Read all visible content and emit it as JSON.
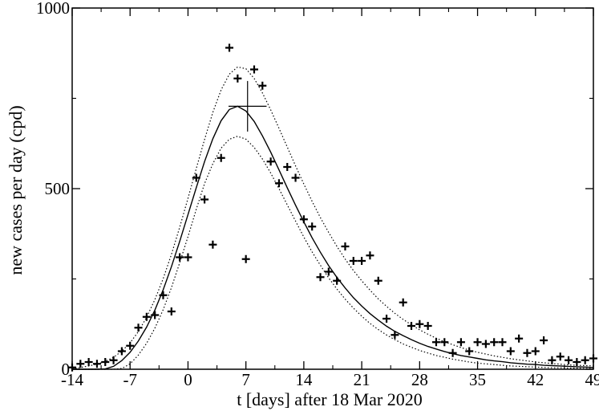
{
  "chart_data": {
    "type": "scatter",
    "title": "",
    "xlabel": "t [days] after 18 Mar 2020",
    "ylabel": "new cases per day  (cpd)",
    "xlim": [
      -14,
      49
    ],
    "ylim": [
      0,
      1000
    ],
    "xticks": [
      -14,
      -7,
      0,
      7,
      14,
      21,
      28,
      35,
      42,
      49
    ],
    "yticks": [
      0,
      500,
      1000
    ],
    "minor_xticks": [
      -10.5,
      -3.5,
      3.5,
      10.5,
      17.5,
      24.5,
      31.5,
      38.5,
      45.5
    ],
    "minor_yticks": [
      250,
      750
    ],
    "grid": false,
    "legend": "none",
    "series": [
      {
        "style": "plus-markers",
        "x": [
          -14,
          -13,
          -12,
          -11,
          -10,
          -9,
          -8,
          -7,
          -6,
          -5,
          -4,
          -3,
          -2,
          -1,
          0,
          1,
          2,
          3,
          4,
          5,
          6,
          7,
          8,
          9,
          10,
          11,
          12,
          13,
          14,
          15,
          16,
          17,
          18,
          19,
          20,
          21,
          22,
          23,
          24,
          25,
          26,
          27,
          28,
          29,
          30,
          31,
          32,
          33,
          34,
          35,
          36,
          37,
          38,
          39,
          40,
          41,
          42,
          43,
          44,
          45,
          46,
          47,
          48,
          49
        ],
        "y": [
          5,
          15,
          20,
          15,
          20,
          25,
          50,
          65,
          115,
          145,
          150,
          205,
          160,
          310,
          310,
          530,
          470,
          345,
          585,
          890,
          805,
          305,
          830,
          785,
          575,
          515,
          560,
          530,
          415,
          395,
          255,
          270,
          245,
          340,
          300,
          300,
          315,
          245,
          140,
          95,
          185,
          120,
          125,
          120,
          75,
          75,
          45,
          75,
          50,
          75,
          70,
          75,
          75,
          50,
          85,
          45,
          50,
          80,
          25,
          35,
          25,
          20,
          25,
          30
        ]
      },
      {
        "style": "solid-line",
        "x": [
          -14,
          -13,
          -12,
          -11,
          -10,
          -9,
          -8,
          -7,
          -6,
          -5,
          -4,
          -3,
          -2,
          -1,
          0,
          1,
          2,
          3,
          4,
          5,
          6,
          7,
          8,
          9,
          10,
          11,
          12,
          13,
          14,
          15,
          16,
          17,
          18,
          19,
          20,
          21,
          22,
          23,
          24,
          25,
          26,
          27,
          28,
          29,
          30,
          31,
          32,
          33,
          34,
          35,
          36,
          37,
          38,
          39,
          40,
          41,
          42,
          43,
          44,
          45,
          46,
          47,
          48,
          49
        ],
        "y": [
          0,
          0,
          0,
          0,
          1,
          8,
          24,
          47,
          78,
          117,
          164,
          220,
          284,
          354,
          428,
          503,
          575,
          638,
          688,
          719,
          728,
          715,
          686,
          646,
          601,
          552,
          502,
          454,
          408,
          364,
          324,
          287,
          254,
          225,
          198,
          175,
          154,
          136,
          119,
          105,
          93,
          82,
          72,
          63,
          56,
          49,
          43,
          38,
          34,
          30,
          26,
          23,
          21,
          18,
          16,
          14,
          13,
          11,
          10,
          9,
          8,
          7,
          6,
          5
        ]
      },
      {
        "style": "dotted-line",
        "x": [
          -14,
          -13,
          -12,
          -11,
          -10,
          -9,
          -8,
          -7,
          -6,
          -5,
          -4,
          -3,
          -2,
          -1,
          0,
          1,
          2,
          3,
          4,
          5,
          6,
          7,
          8,
          9,
          10,
          11,
          12,
          13,
          14,
          15,
          16,
          17,
          18,
          19,
          20,
          21,
          22,
          23,
          24,
          25,
          26,
          27,
          28,
          29,
          30,
          31,
          32,
          33,
          34,
          35,
          36,
          37,
          38,
          39,
          40,
          41,
          42,
          43,
          44,
          45,
          46,
          47,
          48,
          49
        ],
        "y": [
          2,
          5,
          9,
          14,
          22,
          33,
          50,
          73,
          104,
          144,
          193,
          251,
          318,
          393,
          473,
          556,
          636,
          711,
          773,
          817,
          837,
          832,
          805,
          765,
          718,
          667,
          615,
          563,
          513,
          465,
          420,
          379,
          340,
          305,
          273,
          245,
          219,
          195,
          174,
          155,
          138,
          123,
          109,
          97,
          86,
          76,
          68,
          60,
          53,
          47,
          42,
          37,
          33,
          29,
          26,
          23,
          20,
          18,
          16,
          14,
          12,
          11,
          10,
          9
        ]
      },
      {
        "style": "dotted-line",
        "x": [
          -14,
          -13,
          -12,
          -11,
          -10,
          -9,
          -8,
          -7,
          -6,
          -5,
          -4,
          -3,
          -2,
          -1,
          0,
          1,
          2,
          3,
          4,
          5,
          6,
          7,
          8,
          9,
          10,
          11,
          12,
          13,
          14,
          15,
          16,
          17,
          18,
          19,
          20,
          21,
          22,
          23,
          24,
          25,
          26,
          27,
          28,
          29,
          30,
          31,
          32,
          33,
          34,
          35,
          36,
          37,
          38,
          39,
          40,
          41,
          42,
          43,
          44,
          45,
          46,
          47,
          48,
          49
        ],
        "y": [
          0,
          0,
          0,
          0,
          0,
          0,
          2,
          15,
          39,
          72,
          114,
          165,
          226,
          295,
          367,
          443,
          514,
          569,
          612,
          637,
          645,
          637,
          614,
          582,
          543,
          500,
          455,
          410,
          366,
          325,
          288,
          253,
          222,
          194,
          169,
          147,
          127,
          110,
          95,
          82,
          70,
          61,
          52,
          45,
          38,
          33,
          28,
          24,
          20,
          17,
          15,
          13,
          11,
          9,
          8,
          7,
          6,
          5,
          4,
          4,
          3,
          3,
          2,
          2
        ]
      }
    ],
    "peak_marker": {
      "x": 7.2,
      "y": 728,
      "x_err": 2.3,
      "y_err": 70
    }
  }
}
